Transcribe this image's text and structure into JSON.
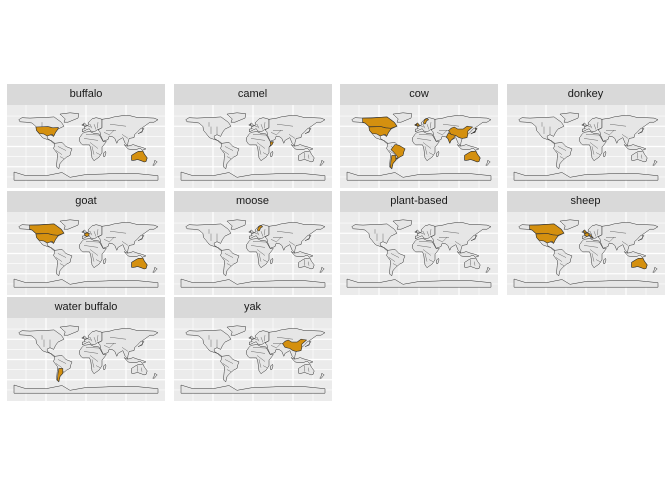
{
  "map_data": {
    "type": "faceted-choropleth",
    "fill_colors": {
      "highlighted": "#d4900f",
      "default": "#e6e6e6",
      "panel": "#ebebeb",
      "grid": "#ffffff",
      "border": "#333333"
    },
    "facets": [
      {
        "label": "buffalo",
        "highlighted": [
          "United States",
          "Australia"
        ]
      },
      {
        "label": "camel",
        "highlighted": [
          "Somalia"
        ]
      },
      {
        "label": "cow",
        "highlighted": [
          "United States",
          "Canada",
          "Brazil",
          "Argentina",
          "Ireland",
          "United Kingdom",
          "Sweden",
          "India",
          "China",
          "Japan",
          "Australia"
        ]
      },
      {
        "label": "donkey",
        "highlighted": []
      },
      {
        "label": "goat",
        "highlighted": [
          "United States",
          "Canada",
          "France",
          "Australia"
        ]
      },
      {
        "label": "moose",
        "highlighted": [
          "Sweden"
        ]
      },
      {
        "label": "plant-based",
        "highlighted": []
      },
      {
        "label": "sheep",
        "highlighted": [
          "United States",
          "Canada",
          "United Kingdom",
          "France",
          "Italy",
          "Australia"
        ]
      },
      {
        "label": "water buffalo",
        "highlighted": [
          "Argentina"
        ]
      },
      {
        "label": "yak",
        "highlighted": [
          "China"
        ]
      }
    ]
  }
}
